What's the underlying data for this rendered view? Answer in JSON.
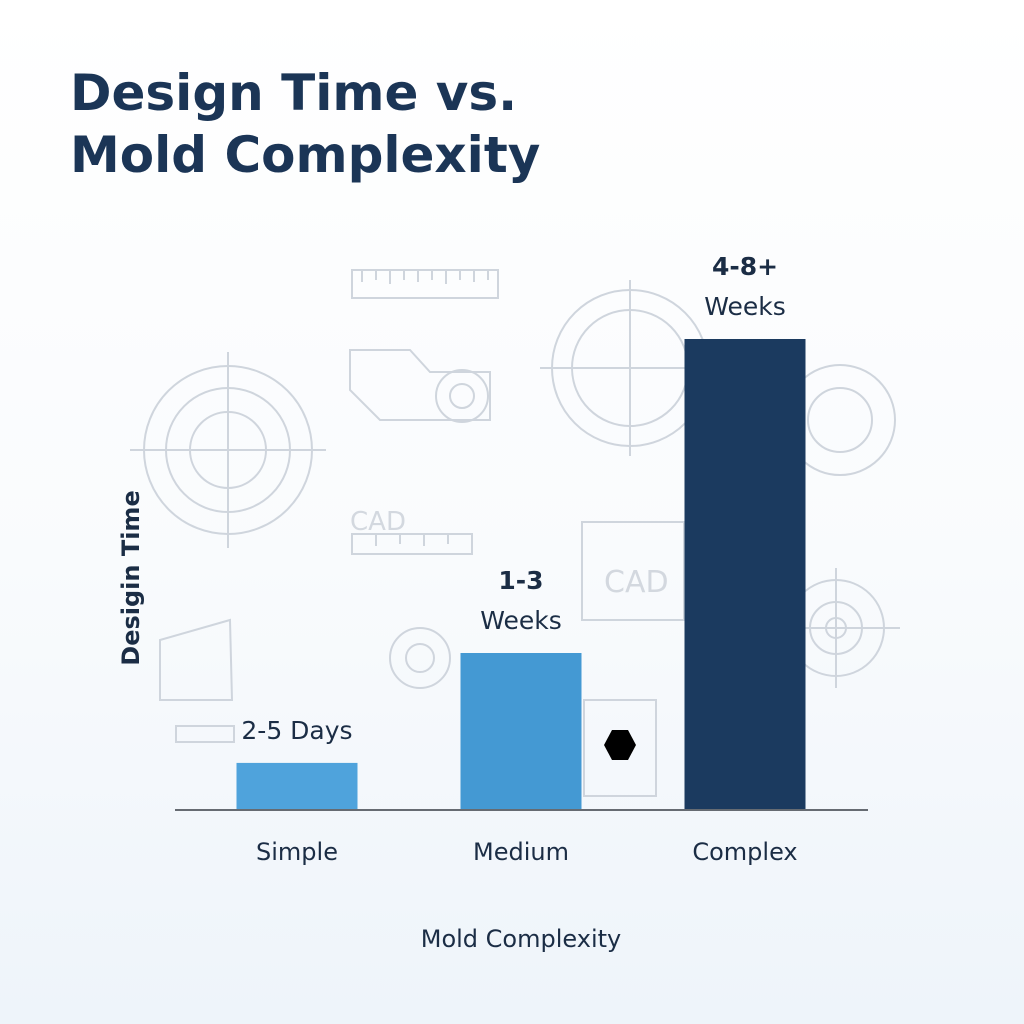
{
  "title_lines": [
    "Design Time vs.",
    "Mold Complexity"
  ],
  "chart_data": {
    "type": "bar",
    "title": "Design Time vs. Mold Complexity",
    "xlabel": "Mold Complexity",
    "ylabel": "Desigin Time",
    "categories": [
      "Simple",
      "Medium",
      "Complex"
    ],
    "values": [
      0.6,
      2,
      6
    ],
    "value_unit": "weeks (approximate)",
    "data_labels": [
      [
        "2-5 Days"
      ],
      [
        "1-3",
        "Weeks"
      ],
      [
        "4-8+",
        "Weeks"
      ]
    ],
    "colors": [
      "#4fa3dc",
      "#4499d3",
      "#1b3a5f"
    ],
    "ylim": [
      0,
      8
    ],
    "grid": false,
    "y_ticks": false
  },
  "background": {
    "cad_labels": [
      "CAD",
      "CAD"
    ],
    "line_color": "#cfd5dd"
  }
}
